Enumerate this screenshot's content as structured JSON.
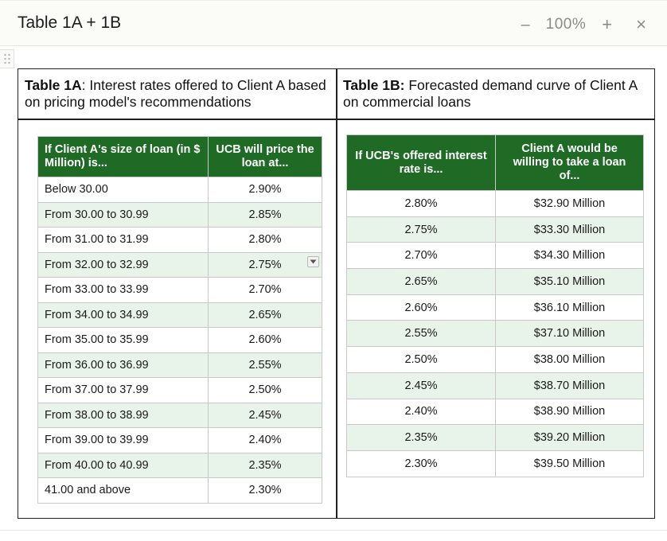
{
  "window": {
    "title": "Table 1A + 1B",
    "zoom_minus": "–",
    "zoom_level": "100%",
    "zoom_plus": "+",
    "close": "×"
  },
  "table_a": {
    "heading_bold": "Table 1A",
    "heading_rest": ": Interest rates offered to Client A based on pricing model's recommendations",
    "headers": [
      "If Client A's size of loan (in $ Million) is...",
      "UCB will price the loan at..."
    ],
    "rows": [
      [
        "Below 30.00",
        "2.90%"
      ],
      [
        "From 30.00 to 30.99",
        "2.85%"
      ],
      [
        "From 31.00 to 31.99",
        "2.80%"
      ],
      [
        "From 32.00 to 32.99",
        "2.75%"
      ],
      [
        "From 33.00 to 33.99",
        "2.70%"
      ],
      [
        "From 34.00 to 34.99",
        "2.65%"
      ],
      [
        "From 35.00 to 35.99",
        "2.60%"
      ],
      [
        "From 36.00 to 36.99",
        "2.55%"
      ],
      [
        "From 37.00 to 37.99",
        "2.50%"
      ],
      [
        "From 38.00 to 38.99",
        "2.45%"
      ],
      [
        "From 39.00 to 39.99",
        "2.40%"
      ],
      [
        "From 40.00 to 40.99",
        "2.35%"
      ],
      [
        "41.00 and above",
        "2.30%"
      ]
    ]
  },
  "table_b": {
    "heading_bold": "Table 1B:",
    "heading_rest": " Forecasted demand curve of Client A on commercial loans",
    "headers": [
      "If UCB's offered interest rate is...",
      "Client A would be willing to take a loan of..."
    ],
    "rows": [
      [
        "2.80%",
        "$32.90 Million"
      ],
      [
        "2.75%",
        "$33.30 Million"
      ],
      [
        "2.70%",
        "$34.30 Million"
      ],
      [
        "2.65%",
        "$35.10 Million"
      ],
      [
        "2.60%",
        "$36.10 Million"
      ],
      [
        "2.55%",
        "$37.10 Million"
      ],
      [
        "2.50%",
        "$38.00 Million"
      ],
      [
        "2.45%",
        "$38.70 Million"
      ],
      [
        "2.40%",
        "$38.90 Million"
      ],
      [
        "2.35%",
        "$39.20 Million"
      ],
      [
        "2.30%",
        "$39.50 Million"
      ]
    ]
  },
  "colors": {
    "header_green": "#1f6b26",
    "row_alt": "#e8f4e9"
  },
  "icons": {
    "drag_handle": "drag-handle-icon",
    "dropdown": "dropdown-arrow-icon"
  }
}
